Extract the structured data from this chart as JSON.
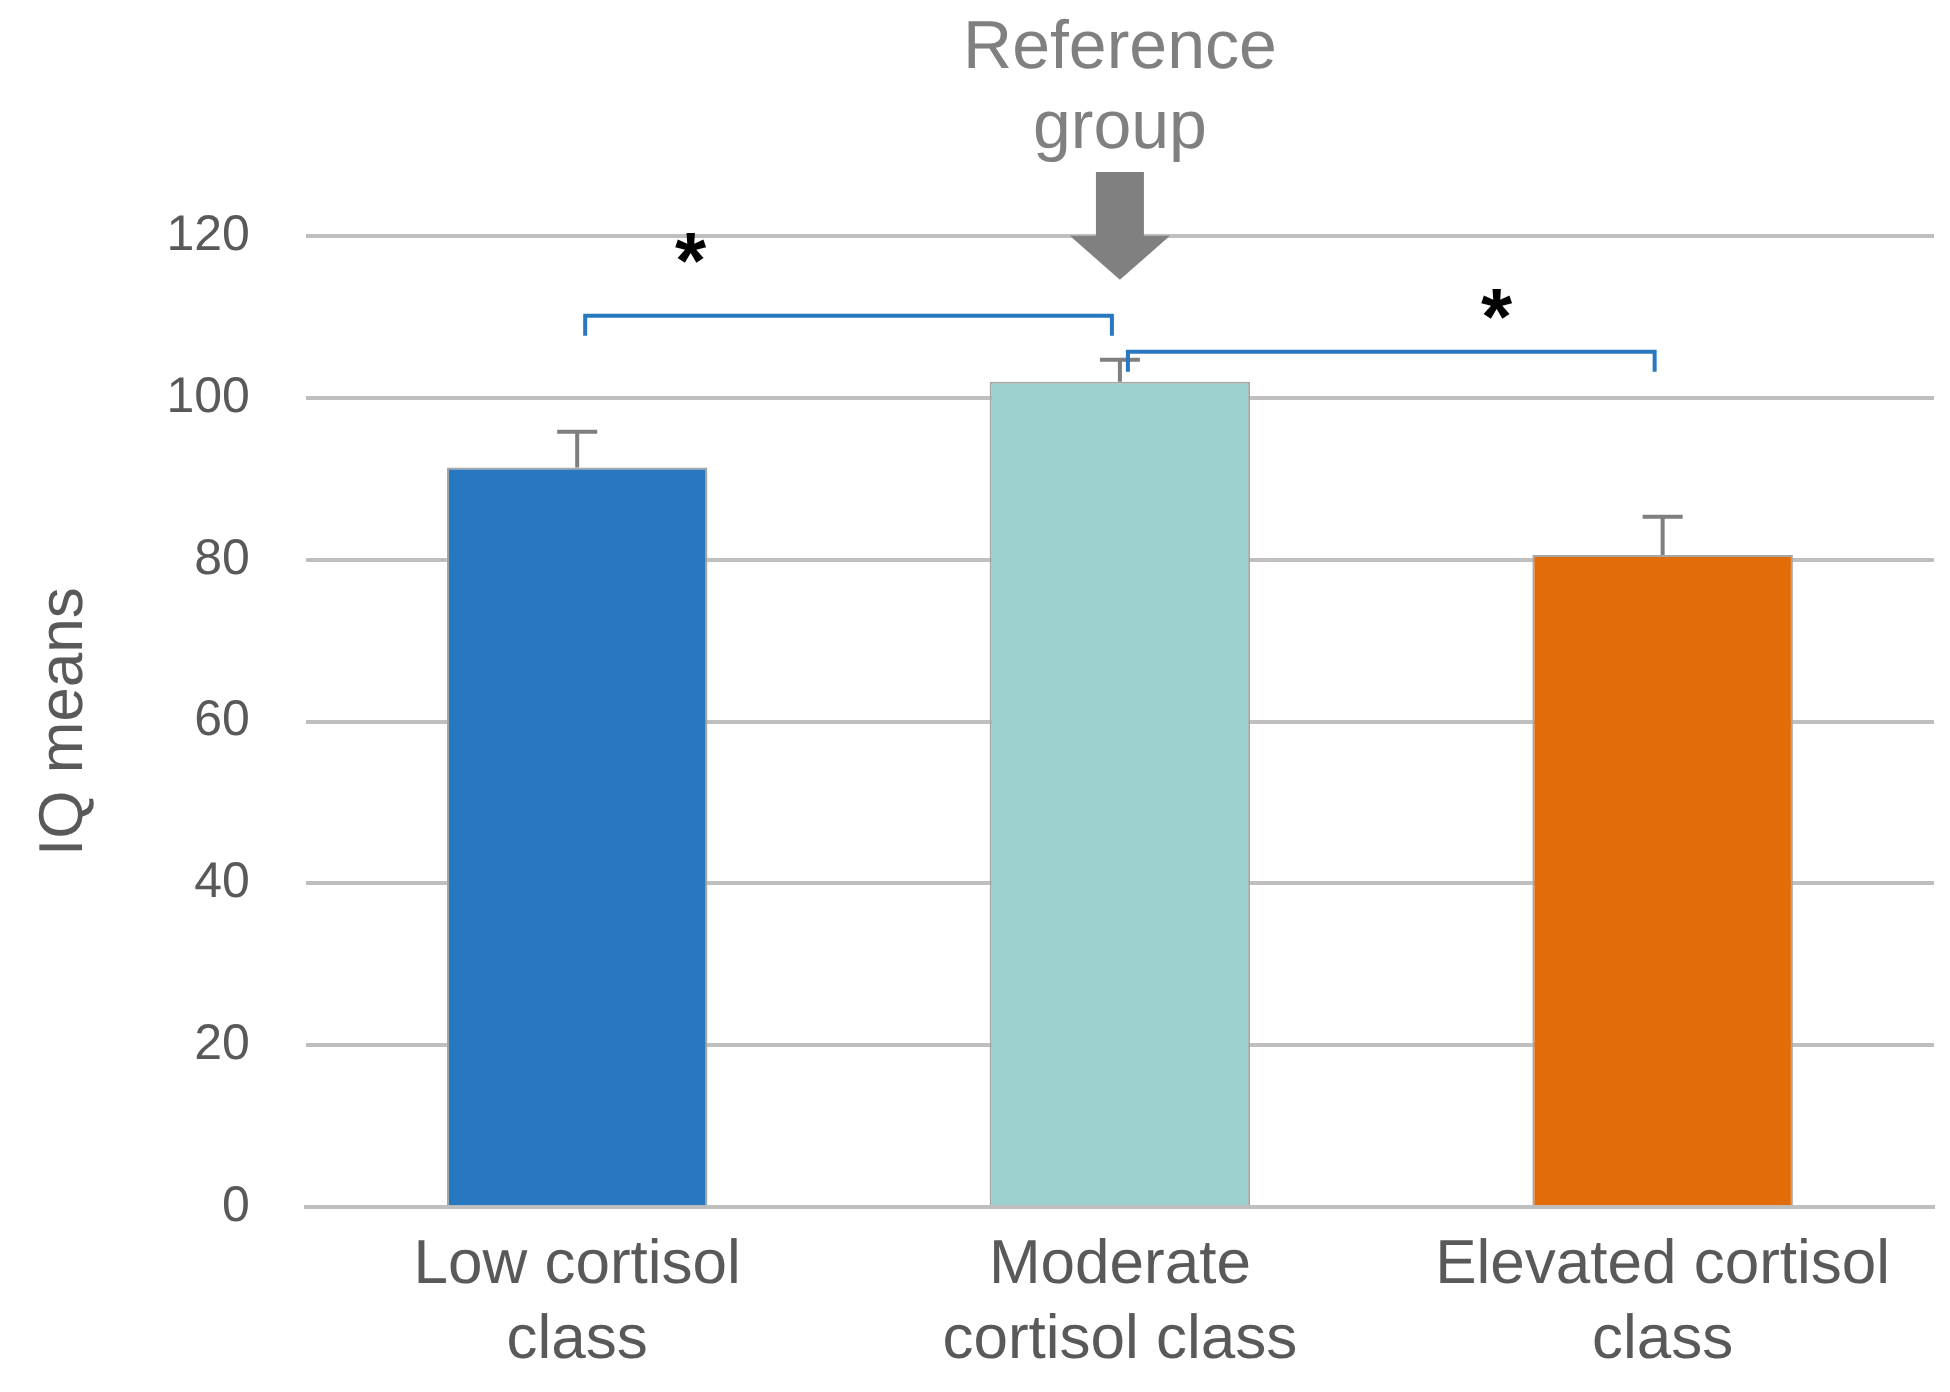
{
  "chart_data": {
    "type": "bar",
    "ylabel": "IQ means",
    "categories": [
      "Low cortisol class",
      "Moderate cortisol class",
      "Elevated cortisol class"
    ],
    "values": [
      91.4,
      102.0,
      80.6
    ],
    "colors": [
      "#2878c0",
      "#9dd1cf",
      "#e36c0a"
    ],
    "errors": [
      4.4,
      2.7,
      4.7
    ],
    "ylim": [
      0,
      120
    ],
    "yticks": [
      0,
      20,
      40,
      60,
      80,
      100,
      120
    ],
    "grid": "y",
    "legend": false,
    "annotations": [
      "Reference group",
      "*",
      "*"
    ]
  }
}
